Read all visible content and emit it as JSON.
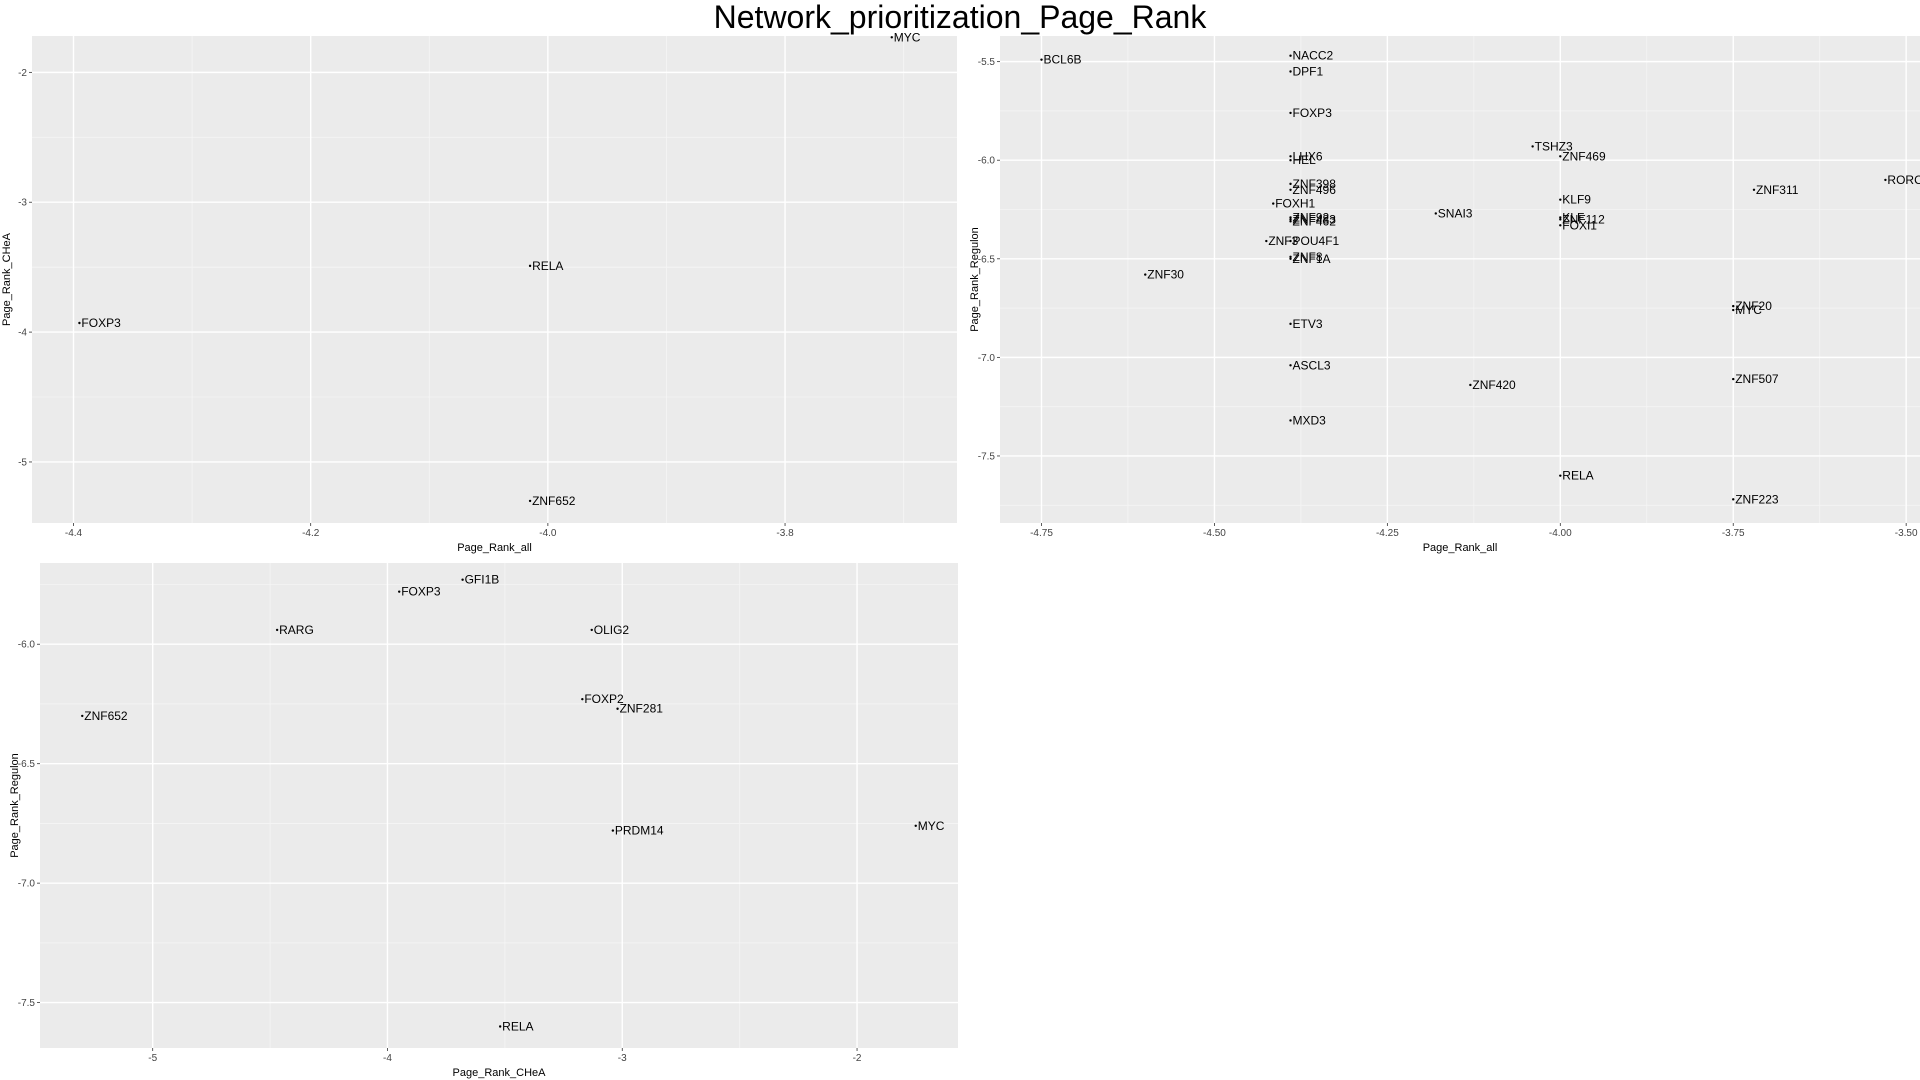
{
  "title": "Network_prioritization_Page_Rank",
  "chart_data": [
    {
      "type": "scatter",
      "xlabel": "Page_Rank_all",
      "ylabel": "Page_Rank_CHeA",
      "xlim": [
        -4.435,
        -3.655
      ],
      "ylim": [
        -5.47,
        -1.72
      ],
      "xticks": [
        -4.4,
        -4.2,
        -4.0,
        -3.8
      ],
      "xtick_labels": [
        "-4.4",
        "-4.2",
        "-4.0",
        "-3.8"
      ],
      "yticks": [
        -5,
        -4,
        -3,
        -2
      ],
      "ytick_labels": [
        "-5",
        "-4",
        "-3",
        "-2"
      ],
      "points": [
        {
          "label": "MYC",
          "x": -3.71,
          "y": -1.73
        },
        {
          "label": "RELA",
          "x": -4.015,
          "y": -3.49
        },
        {
          "label": "FOXP3",
          "x": -4.395,
          "y": -3.93
        },
        {
          "label": "ZNF652",
          "x": -4.015,
          "y": -5.3
        }
      ]
    },
    {
      "type": "scatter",
      "xlabel": "Page_Rank_all",
      "ylabel": "Page_Rank_Regulon",
      "xlim": [
        -4.81,
        -3.48
      ],
      "ylim": [
        -7.84,
        -5.37
      ],
      "xticks": [
        -4.75,
        -4.5,
        -4.25,
        -4.0,
        -3.75,
        -3.5
      ],
      "xtick_labels": [
        "-4.75",
        "-4.50",
        "-4.25",
        "-4.00",
        "-3.75",
        "-3.50"
      ],
      "yticks": [
        -7.5,
        -7.0,
        -6.5,
        -6.0,
        -5.5
      ],
      "ytick_labels": [
        "-7.5",
        "-7.0",
        "-6.5",
        "-6.0",
        "-5.5"
      ],
      "points": [
        {
          "label": "BCL6B",
          "x": -4.75,
          "y": -5.49
        },
        {
          "label": "NACC2",
          "x": -4.39,
          "y": -5.47
        },
        {
          "label": "DPF1",
          "x": -4.39,
          "y": -5.55
        },
        {
          "label": "FOXP3",
          "x": -4.39,
          "y": -5.76
        },
        {
          "label": "TSHZ3",
          "x": -4.04,
          "y": -5.93
        },
        {
          "label": "ZNF469",
          "x": -4.0,
          "y": -5.98
        },
        {
          "label": "LHX6",
          "x": -4.39,
          "y": -5.98
        },
        {
          "label": "HEL",
          "x": -4.39,
          "y": -6.0
        },
        {
          "label": "RORC",
          "x": -3.53,
          "y": -6.1
        },
        {
          "label": "ZNF398",
          "x": -4.39,
          "y": -6.12
        },
        {
          "label": "ZNF496",
          "x": -4.39,
          "y": -6.15
        },
        {
          "label": "ZNF311",
          "x": -3.72,
          "y": -6.15
        },
        {
          "label": "KLF9",
          "x": -4.0,
          "y": -6.2
        },
        {
          "label": "FOXH1",
          "x": -4.415,
          "y": -6.22
        },
        {
          "label": "SNAI3",
          "x": -4.18,
          "y": -6.27
        },
        {
          "label": "ZNF92",
          "x": -4.39,
          "y": -6.29
        },
        {
          "label": "KLF",
          "x": -4.0,
          "y": -6.29
        },
        {
          "label": "ZNF483",
          "x": -4.39,
          "y": -6.3
        },
        {
          "label": "ZNF462",
          "x": -4.39,
          "y": -6.31
        },
        {
          "label": "ZNF112",
          "x": -4.0,
          "y": -6.3
        },
        {
          "label": "FOXI1",
          "x": -4.0,
          "y": -6.33
        },
        {
          "label": "ZNF3",
          "x": -4.425,
          "y": -6.41
        },
        {
          "label": "POU4F1",
          "x": -4.39,
          "y": -6.41
        },
        {
          "label": "ZNF8",
          "x": -4.39,
          "y": -6.49
        },
        {
          "label": "ZNF1A",
          "x": -4.39,
          "y": -6.5
        },
        {
          "label": "ZNF30",
          "x": -4.6,
          "y": -6.58
        },
        {
          "label": "ZNF20",
          "x": -3.75,
          "y": -6.74
        },
        {
          "label": "MYC",
          "x": -3.75,
          "y": -6.76
        },
        {
          "label": "ETV3",
          "x": -4.39,
          "y": -6.83
        },
        {
          "label": "ASCL3",
          "x": -4.39,
          "y": -7.04
        },
        {
          "label": "ZNF507",
          "x": -3.75,
          "y": -7.11
        },
        {
          "label": "ZNF420",
          "x": -4.13,
          "y": -7.14
        },
        {
          "label": "MXD3",
          "x": -4.39,
          "y": -7.32
        },
        {
          "label": "RELA",
          "x": -4.0,
          "y": -7.6
        },
        {
          "label": "ZNF223",
          "x": -3.75,
          "y": -7.72
        }
      ]
    },
    {
      "type": "scatter",
      "xlabel": "Page_Rank_CHeA",
      "ylabel": "Page_Rank_Regulon",
      "xlim": [
        -5.48,
        -1.57
      ],
      "ylim": [
        -7.69,
        -5.66
      ],
      "xticks": [
        -5,
        -4,
        -3,
        -2
      ],
      "xtick_labels": [
        "-5",
        "-4",
        "-3",
        "-2"
      ],
      "yticks": [
        -7.5,
        -7.0,
        -6.5,
        -6.0
      ],
      "ytick_labels": [
        "-7.5",
        "-7.0",
        "-6.5",
        "-6.0"
      ],
      "points": [
        {
          "label": "GFI1B",
          "x": -3.68,
          "y": -5.73
        },
        {
          "label": "FOXP3",
          "x": -3.95,
          "y": -5.78
        },
        {
          "label": "RARG",
          "x": -4.47,
          "y": -5.94
        },
        {
          "label": "OLIG2",
          "x": -3.13,
          "y": -5.94
        },
        {
          "label": "ZNF652",
          "x": -5.3,
          "y": -6.3
        },
        {
          "label": "FOXP2",
          "x": -3.17,
          "y": -6.23
        },
        {
          "label": "ZNF281",
          "x": -3.02,
          "y": -6.27
        },
        {
          "label": "PRDM14",
          "x": -3.04,
          "y": -6.78
        },
        {
          "label": "MYC",
          "x": -1.75,
          "y": -6.76
        },
        {
          "label": "RELA",
          "x": -3.52,
          "y": -7.6
        }
      ]
    }
  ]
}
